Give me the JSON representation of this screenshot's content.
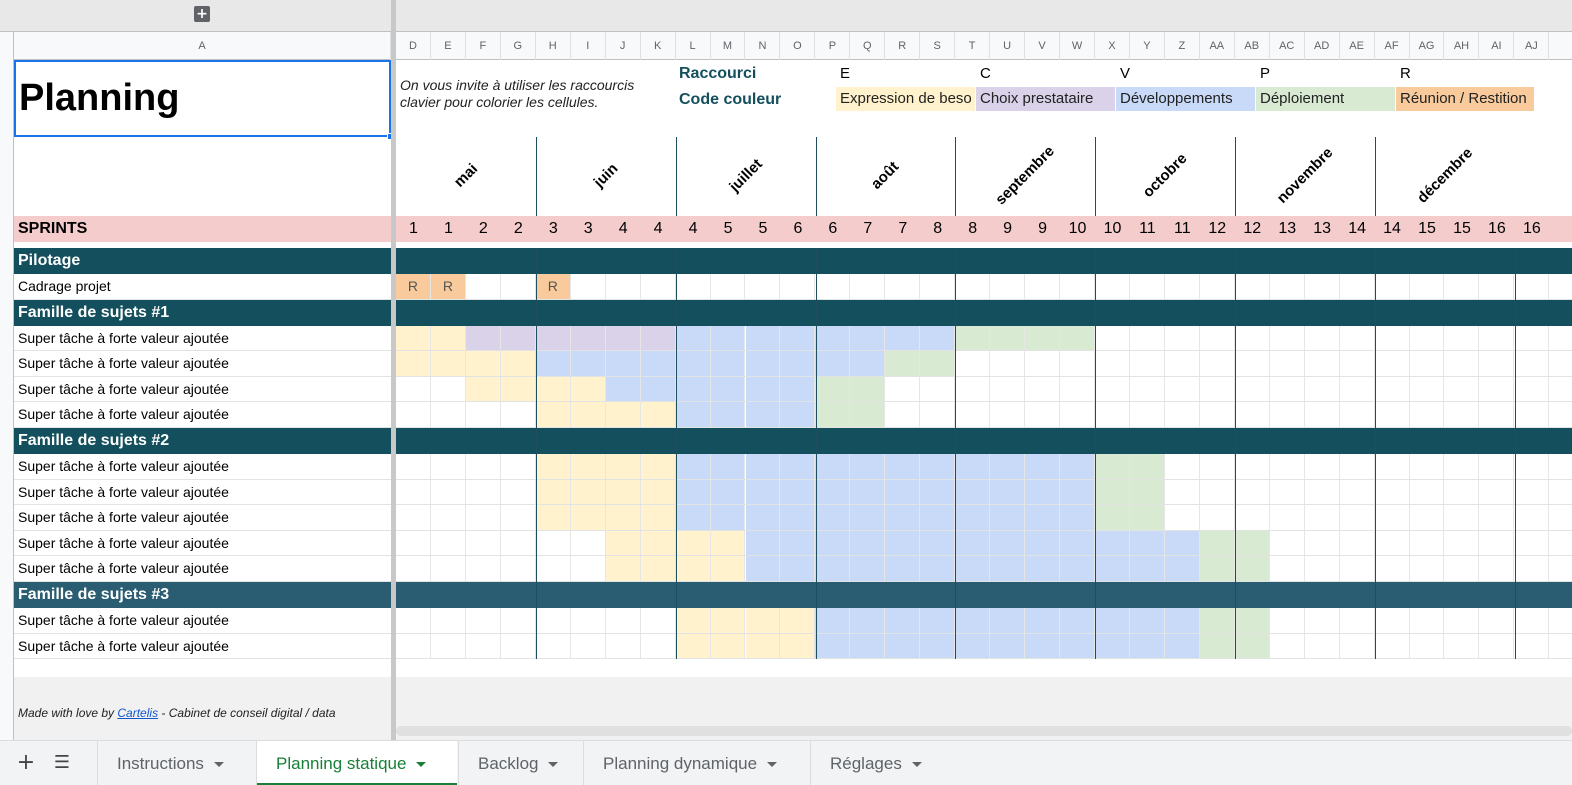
{
  "sheet": {
    "title": "Planning",
    "hint": "On vous invite à utiliser les raccourcis clavier pour colorier les cellules.",
    "shortcut_label": "Raccourci",
    "color_code_label": "Code couleur",
    "add_group_icon": "plus-icon"
  },
  "columns": [
    "A",
    "D",
    "E",
    "F",
    "G",
    "H",
    "I",
    "J",
    "K",
    "L",
    "M",
    "N",
    "O",
    "P",
    "Q",
    "R",
    "S",
    "T",
    "U",
    "V",
    "W",
    "X",
    "Y",
    "Z",
    "AA",
    "AB",
    "AC",
    "AD",
    "AE",
    "AF",
    "AG",
    "AH",
    "AI",
    "AJ"
  ],
  "legend": [
    {
      "key": "E",
      "label": "Expression de beso",
      "color": "#fff2cc"
    },
    {
      "key": "C",
      "label": "Choix prestataire",
      "color": "#d9d2e9"
    },
    {
      "key": "V",
      "label": "Développements",
      "color": "#c9daf8"
    },
    {
      "key": "P",
      "label": "Déploiement",
      "color": "#d9ead3"
    },
    {
      "key": "R",
      "label": "Réunion / Restition",
      "color": "#f9cb9c"
    }
  ],
  "months": [
    "mai",
    "juin",
    "juillet",
    "août",
    "septembre",
    "octobre",
    "novembre",
    "décembre"
  ],
  "sprints": {
    "label": "SPRINTS",
    "numbers": [
      "1",
      "1",
      "2",
      "2",
      "3",
      "3",
      "4",
      "4",
      "4",
      "5",
      "5",
      "6",
      "6",
      "7",
      "7",
      "8",
      "8",
      "9",
      "9",
      "10",
      "10",
      "11",
      "11",
      "12",
      "12",
      "13",
      "13",
      "14",
      "14",
      "15",
      "15",
      "16",
      "16"
    ]
  },
  "rows": [
    {
      "type": "section",
      "label": "Pilotage"
    },
    {
      "type": "task",
      "label": "Cadrage projet",
      "cells": "RR..R............................"
    },
    {
      "type": "section",
      "label": "Famille de sujets #1"
    },
    {
      "type": "task",
      "label": "Super tâche à forte valeur ajoutée",
      "cells": "EECCCCCCVVVVVVVVPPPP............."
    },
    {
      "type": "task",
      "label": "Super tâche à forte valeur ajoutée",
      "cells": "EEEEVVVVVVVVVVPP................."
    },
    {
      "type": "task",
      "label": "Super tâche à forte valeur ajoutée",
      "cells": "..EEEEVVVVVVPP..................."
    },
    {
      "type": "task",
      "label": "Super tâche à forte valeur ajoutée",
      "cells": "....EEEEVVVVPP..................."
    },
    {
      "type": "section",
      "label": "Famille de sujets #2"
    },
    {
      "type": "task",
      "label": "Super tâche à forte valeur ajoutée",
      "cells": "....EEEEVVVVVVVVVVVVPP..........."
    },
    {
      "type": "task",
      "label": "Super tâche à forte valeur ajoutée",
      "cells": "....EEEEVVVVVVVVVVVVPP..........."
    },
    {
      "type": "task",
      "label": "Super tâche à forte valeur ajoutée",
      "cells": "....EEEEVVVVVVVVVVVVPP..........."
    },
    {
      "type": "task",
      "label": "Super tâche à forte valeur ajoutée",
      "cells": "......EEEEVVVVVVVVVVVVVPP........"
    },
    {
      "type": "task",
      "label": "Super tâche à forte valeur ajoutée",
      "cells": "......EEEEVVVVVVVVVVVVVPP........"
    },
    {
      "type": "section",
      "label": "Famille de sujets #3"
    },
    {
      "type": "task",
      "label": "Super tâche à forte valeur ajoutée",
      "cells": "........EEEEVVVVVVVVVVVPP........"
    },
    {
      "type": "task",
      "label": "Super tâche à forte valeur ajoutée",
      "cells": "........EEEEVVVVVVVVVVVPP........"
    }
  ],
  "footer": {
    "prefix": "Made with love by ",
    "link": "Cartelis",
    "suffix": " - Cabinet de conseil digital / data"
  },
  "tabs": [
    {
      "label": "Instructions",
      "active": false
    },
    {
      "label": "Planning statique",
      "active": true
    },
    {
      "label": "Backlog",
      "active": false
    },
    {
      "label": "Planning dynamique",
      "active": false
    },
    {
      "label": "Réglages",
      "active": false
    }
  ],
  "tabbar": {
    "add_icon": "plus-icon",
    "list_icon": "sheet-list-icon"
  }
}
